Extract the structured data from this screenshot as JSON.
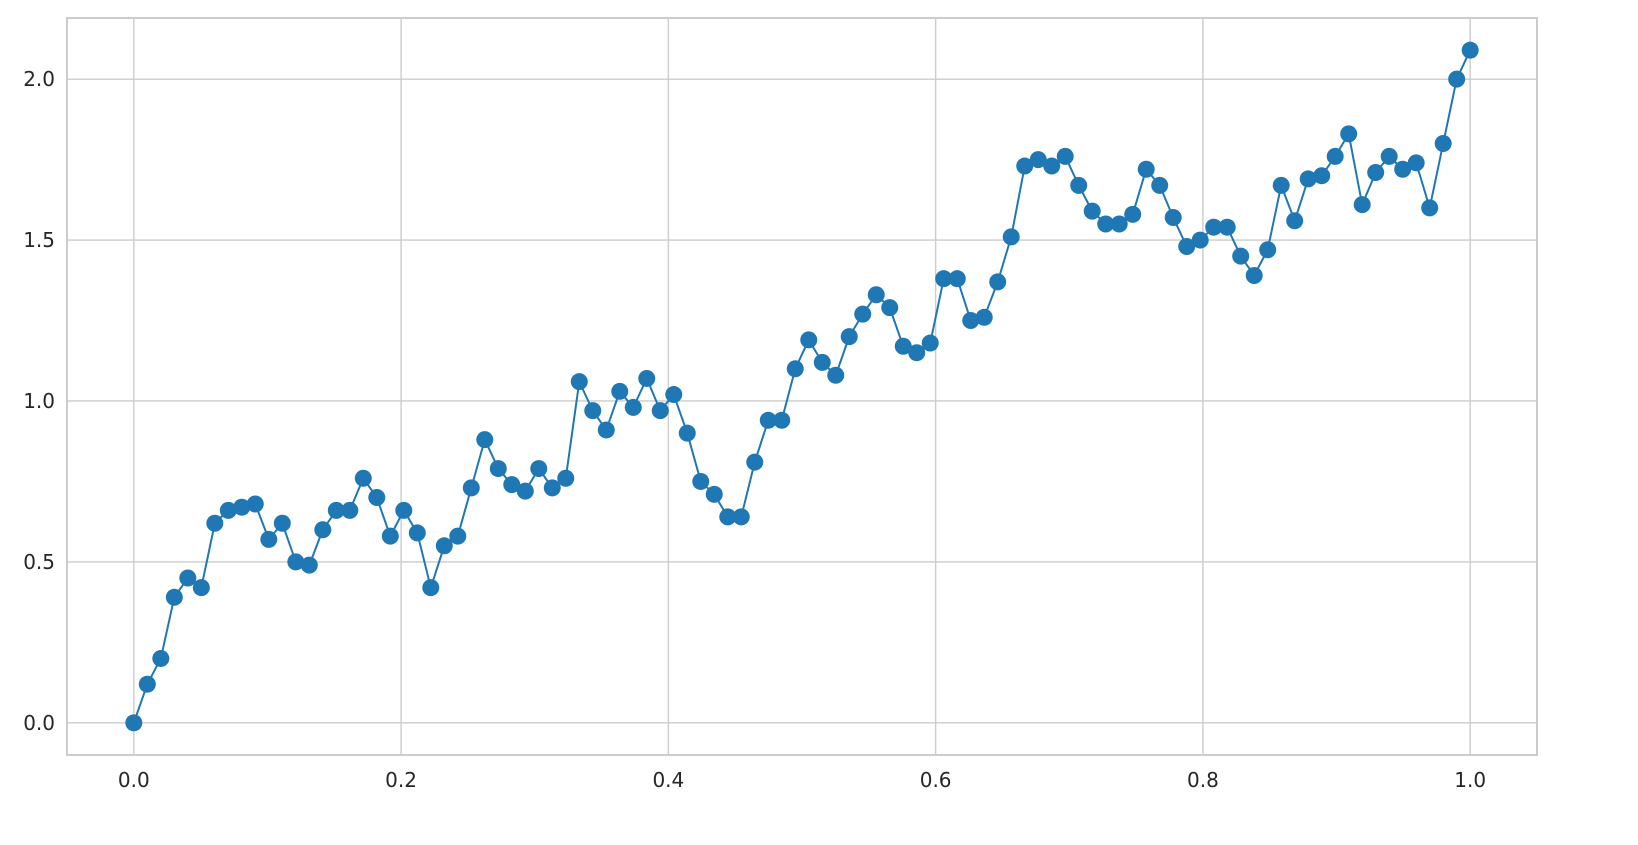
{
  "chart_data": {
    "type": "line",
    "title": "",
    "xlabel": "",
    "ylabel": "",
    "grid": true,
    "legend": "none",
    "xlim": [
      -0.05,
      1.05
    ],
    "ylim": [
      -0.1,
      2.19
    ],
    "x_ticks": [
      0.0,
      0.2,
      0.4,
      0.6,
      0.8,
      1.0
    ],
    "x_tick_labels": [
      "0.0",
      "0.2",
      "0.4",
      "0.6",
      "0.8",
      "1.0"
    ],
    "y_ticks": [
      0.0,
      0.5,
      1.0,
      1.5,
      2.0
    ],
    "y_tick_labels": [
      "0.0",
      "0.5",
      "1.0",
      "1.5",
      "2.0"
    ],
    "series": [
      {
        "color": "#1f77b4",
        "marker": "circle",
        "x_start": 0.0,
        "x_end": 1.0,
        "y": [
          0.0,
          0.12,
          0.2,
          0.39,
          0.45,
          0.42,
          0.62,
          0.66,
          0.67,
          0.68,
          0.57,
          0.62,
          0.5,
          0.49,
          0.6,
          0.66,
          0.66,
          0.76,
          0.7,
          0.58,
          0.66,
          0.59,
          0.42,
          0.55,
          0.58,
          0.73,
          0.88,
          0.79,
          0.74,
          0.72,
          0.79,
          0.73,
          0.76,
          1.06,
          0.97,
          0.91,
          1.03,
          0.98,
          1.07,
          0.97,
          1.02,
          0.9,
          0.75,
          0.71,
          0.64,
          0.64,
          0.81,
          0.94,
          0.94,
          1.1,
          1.19,
          1.12,
          1.08,
          1.2,
          1.27,
          1.33,
          1.29,
          1.17,
          1.15,
          1.18,
          1.38,
          1.38,
          1.25,
          1.26,
          1.37,
          1.51,
          1.73,
          1.75,
          1.73,
          1.76,
          1.67,
          1.59,
          1.55,
          1.55,
          1.58,
          1.72,
          1.67,
          1.57,
          1.48,
          1.5,
          1.54,
          1.54,
          1.45,
          1.39,
          1.47,
          1.67,
          1.56,
          1.69,
          1.7,
          1.76,
          1.83,
          1.61,
          1.71,
          1.76,
          1.72,
          1.74,
          1.6,
          1.8,
          2.0,
          2.09
        ]
      }
    ]
  }
}
